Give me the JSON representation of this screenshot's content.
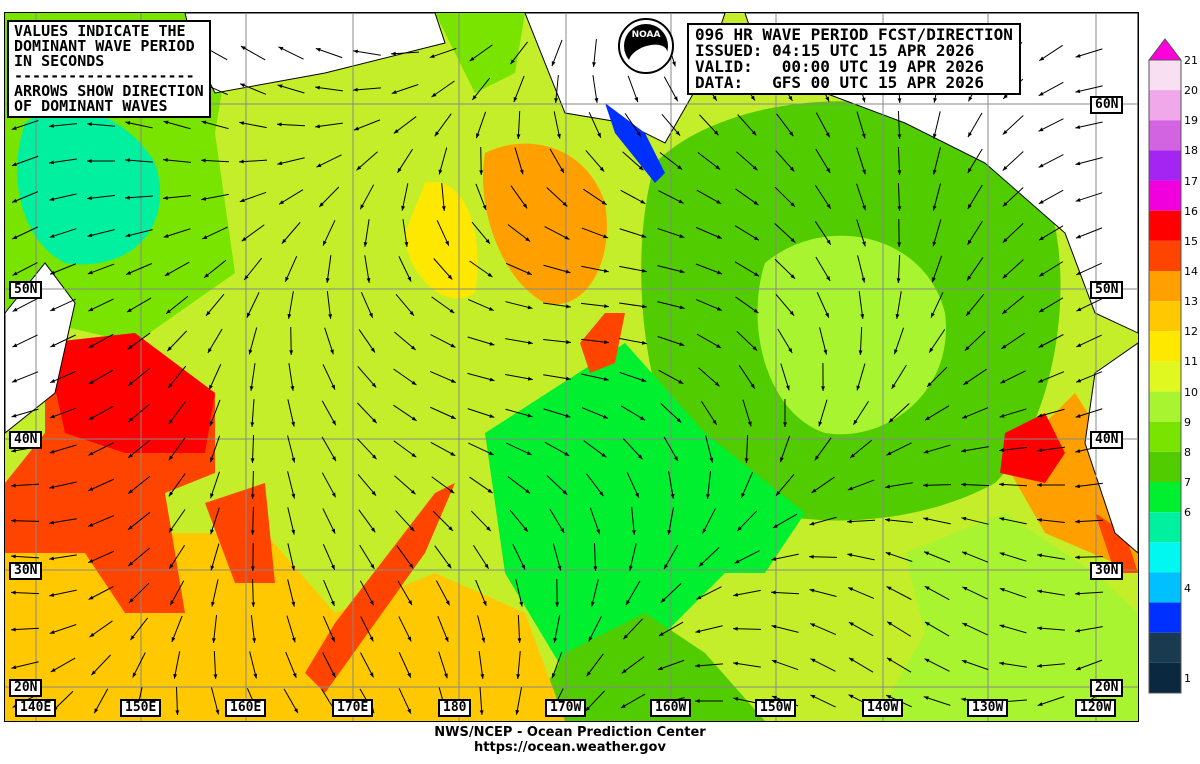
{
  "legend_box": {
    "lines": [
      "VALUES INDICATE THE",
      "DOMINANT WAVE PERIOD",
      "IN SECONDS",
      "--------------------",
      "ARROWS SHOW DIRECTION",
      "OF DOMINANT WAVES"
    ]
  },
  "info_box": {
    "title": "096 HR WAVE PERIOD FCST/DIRECTION",
    "issued": "ISSUED: 04:15 UTC 15 APR 2026",
    "valid": "VALID:   00:00 UTC 19 APR 2026",
    "data": "DATA:   GFS 00 UTC 15 APR 2026"
  },
  "logo": {
    "text": "NOAA"
  },
  "latitude_labels_left": [
    "50N",
    "40N",
    "30N",
    "20N"
  ],
  "latitude_labels_right": [
    "60N",
    "50N",
    "40N",
    "30N",
    "20N"
  ],
  "longitude_labels": [
    "140E",
    "150E",
    "160E",
    "170E",
    "180",
    "170W",
    "160W",
    "150W",
    "140W",
    "130W",
    "120W"
  ],
  "footer": {
    "line1": "NWS/NCEP - Ocean Prediction Center",
    "line2": "https://ocean.weather.gov"
  },
  "colorbar": {
    "unit": "seconds",
    "labels": [
      "21",
      "20",
      "19",
      "18",
      "17",
      "16",
      "15",
      "14",
      "13",
      "12",
      "11",
      "10",
      "9",
      "8",
      "7",
      "6",
      "4",
      "1"
    ],
    "colors": [
      "#f8e0f2",
      "#f0a8ea",
      "#d264e2",
      "#a424f2",
      "#f000dc",
      "#ff0000",
      "#ff4400",
      "#ffa000",
      "#ffc800",
      "#ffe800",
      "#e0f820",
      "#a8f430",
      "#78e400",
      "#50cc00",
      "#00f030",
      "#00f0a0",
      "#00f8f0",
      "#00c0ff",
      "#0030ff",
      "#1a3a50",
      "#0a2840"
    ],
    "max_arrow_color": "#ff00dd"
  }
}
